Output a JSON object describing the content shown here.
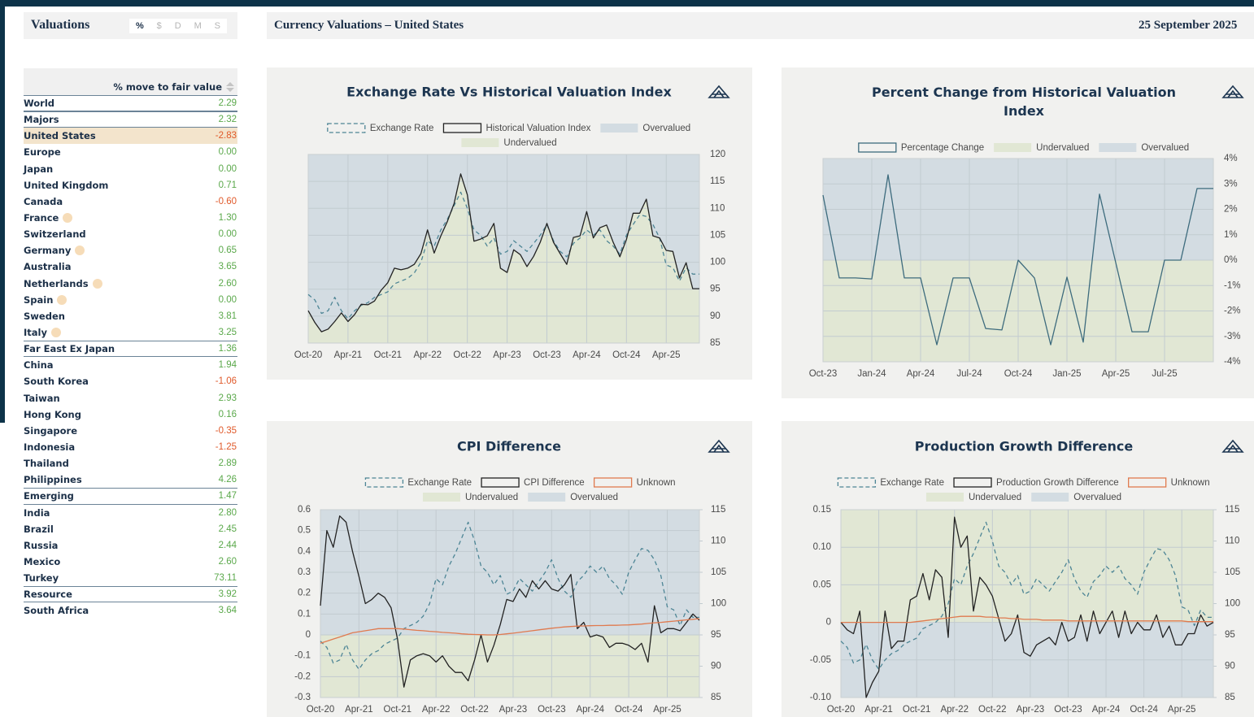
{
  "sidebar": {
    "title": "Valuations",
    "toggles": [
      "%",
      "$",
      "D",
      "M",
      "S"
    ],
    "column": "% move to fair value",
    "rows": [
      [
        "World",
        "2.29"
      ],
      [
        "Majors",
        "2.32"
      ],
      [
        "United States",
        "-2.83"
      ],
      [
        "Europe",
        "0.00"
      ],
      [
        "Japan",
        "0.00"
      ],
      [
        "United Kingdom",
        "0.71"
      ],
      [
        "Canada",
        "-0.60"
      ],
      [
        "France",
        "1.30"
      ],
      [
        "Switzerland",
        "0.00"
      ],
      [
        "Germany",
        "0.65"
      ],
      [
        "Australia",
        "3.65"
      ],
      [
        "Netherlands",
        "2.60"
      ],
      [
        "Spain",
        "0.00"
      ],
      [
        "Sweden",
        "3.81"
      ],
      [
        "Italy",
        "3.25"
      ],
      [
        "Far East Ex Japan",
        "1.36"
      ],
      [
        "China",
        "1.94"
      ],
      [
        "South Korea",
        "-1.06"
      ],
      [
        "Taiwan",
        "2.93"
      ],
      [
        "Hong Kong",
        "0.16"
      ],
      [
        "Singapore",
        "-0.35"
      ],
      [
        "Indonesia",
        "-1.25"
      ],
      [
        "Thailand",
        "2.89"
      ],
      [
        "Philippines",
        "4.26"
      ],
      [
        "Emerging",
        "1.47"
      ],
      [
        "India",
        "2.80"
      ],
      [
        "Brazil",
        "2.45"
      ],
      [
        "Russia",
        "2.44"
      ],
      [
        "Mexico",
        "2.60"
      ],
      [
        "Turkey",
        "73.11"
      ],
      [
        "Resource",
        "3.92"
      ],
      [
        "South Africa",
        "3.64"
      ]
    ]
  },
  "header": {
    "title": "Currency Valuations – United States",
    "date": "25 September 2025"
  },
  "chart_data": [
    {
      "type": "line",
      "title": "Exchange Rate Vs Historical Valuation Index",
      "categories": [
        "Oct-20",
        null,
        null,
        null,
        null,
        null,
        "Apr-21",
        null,
        null,
        null,
        null,
        null,
        "Oct-21",
        null,
        null,
        null,
        null,
        null,
        "Apr-22",
        null,
        null,
        null,
        null,
        null,
        "Oct-22",
        null,
        null,
        null,
        null,
        null,
        "Apr-23",
        null,
        null,
        null,
        null,
        null,
        "Oct-23",
        null,
        null,
        null,
        null,
        null,
        "Apr-24",
        null,
        null,
        null,
        null,
        null,
        "Oct-24",
        null,
        null,
        null,
        null,
        null,
        "Apr-25",
        null,
        null,
        null,
        null,
        null
      ],
      "series": [
        {
          "name": "Exchange Rate",
          "color": "#4d8595",
          "dash": true,
          "values": [
            94,
            93,
            90.5,
            91,
            93.5,
            91,
            89.5,
            91,
            92,
            92.5,
            93.5,
            94,
            94.5,
            96,
            96.5,
            97,
            98,
            100,
            104,
            103,
            106,
            108,
            110.5,
            113,
            110,
            106,
            105,
            103,
            104.5,
            101.5,
            102,
            104,
            103,
            102,
            103.5,
            105,
            107,
            104,
            102,
            101,
            103.5,
            104.5,
            106,
            105,
            106,
            104,
            103,
            101.5,
            105,
            107,
            108.8,
            108.5,
            107,
            104.5,
            99.5,
            99,
            96.5,
            99,
            97.8,
            97.8
          ]
        },
        {
          "name": "Historical Valuation Index",
          "color": "#222222",
          "values": [
            91,
            88.8,
            87.1,
            87.6,
            89,
            90.6,
            89,
            90.3,
            92.2,
            92.1,
            92.8,
            94.8,
            96.2,
            98.9,
            98.6,
            98.9,
            99.6,
            101.6,
            106,
            101.7,
            104.9,
            107.6,
            110.9,
            116.4,
            112.5,
            103.9,
            104.3,
            104.9,
            107.2,
            98.9,
            98.1,
            102.3,
            101.4,
            99.2,
            101.1,
            103.7,
            107.2,
            103.7,
            101.6,
            99.6,
            104.6,
            104.9,
            109.4,
            104.5,
            106.4,
            106.9,
            103.7,
            101,
            104.2,
            109.1,
            109.1,
            111.7,
            104.9,
            104.5,
            102.2,
            102,
            97.1,
            99.9,
            95.1,
            95.1
          ]
        }
      ],
      "areas": [
        {
          "name": "Overvalued",
          "color": "#d3dce2"
        },
        {
          "name": "Undervalued",
          "color": "#e1e7d4"
        }
      ],
      "ylim": [
        85,
        120
      ],
      "yticks": [
        85,
        90,
        95,
        100,
        105,
        110,
        115,
        120
      ],
      "grid": true
    },
    {
      "type": "line",
      "title": "Percent Change from Historical Valuation Index",
      "categories": [
        "Oct-23",
        null,
        null,
        "Jan-24",
        null,
        null,
        "Apr-24",
        null,
        null,
        "Jul-24",
        null,
        null,
        "Oct-24",
        null,
        null,
        "Jan-25",
        null,
        null,
        "Apr-25",
        null,
        null,
        "Jul-25",
        null,
        null,
        null
      ],
      "series": [
        {
          "name": "Percentage Change",
          "color": "#3d6b7d",
          "values": [
            2.56,
            -0.7,
            -0.7,
            -0.74,
            3.36,
            -0.7,
            -0.7,
            -3.33,
            -0.7,
            -0.7,
            -2.69,
            -2.75,
            0,
            -0.7,
            -3.33,
            -0.67,
            -3.23,
            2.6,
            -0.1,
            -2.82,
            -2.82,
            0,
            0,
            2.82,
            2.82
          ]
        }
      ],
      "areas": [
        {
          "name": "Undervalued",
          "color": "#e1e7d4"
        },
        {
          "name": "Overvalued",
          "color": "#d3dce2"
        }
      ],
      "ylim": [
        -4,
        4
      ],
      "yticks": [
        {
          "value": -4,
          "label": "-4%"
        },
        {
          "value": -3,
          "label": "-3%"
        },
        {
          "value": -2,
          "label": "-2%"
        },
        {
          "value": -1,
          "label": "-1%"
        },
        {
          "value": 0,
          "label": "0%"
        },
        {
          "value": 1,
          "label": "1%"
        },
        {
          "value": 2,
          "label": "2%"
        },
        {
          "value": 3,
          "label": "3%"
        },
        {
          "value": 4,
          "label": "4%"
        }
      ],
      "grid": true
    },
    {
      "type": "line",
      "title": "CPI Difference",
      "categories": [
        "Oct-20",
        null,
        null,
        null,
        null,
        null,
        "Apr-21",
        null,
        null,
        null,
        null,
        null,
        "Oct-21",
        null,
        null,
        null,
        null,
        null,
        "Apr-22",
        null,
        null,
        null,
        null,
        null,
        "Oct-22",
        null,
        null,
        null,
        null,
        null,
        "Apr-23",
        null,
        null,
        null,
        null,
        null,
        "Oct-23",
        null,
        null,
        null,
        null,
        null,
        "Apr-24",
        null,
        null,
        null,
        null,
        null,
        "Oct-24",
        null,
        null,
        null,
        null,
        null,
        "Apr-25",
        null,
        null,
        null,
        null,
        null
      ],
      "series": [
        {
          "name": "Exchange Rate",
          "color": "#4d8595",
          "dash": true,
          "axis": "y2",
          "values": [
            94,
            93,
            90.5,
            91,
            93.5,
            91,
            89.5,
            91,
            92,
            92.5,
            93.5,
            94,
            94.5,
            96,
            96.5,
            97,
            98,
            100,
            104,
            103,
            106,
            108,
            110.5,
            113,
            110,
            106,
            105,
            103,
            104.5,
            101.5,
            102,
            104,
            103,
            102,
            103.5,
            105,
            107,
            104,
            102,
            101,
            103.5,
            104.5,
            106,
            105,
            106,
            104,
            103,
            101.5,
            105,
            107,
            108.8,
            108.5,
            107,
            104.5,
            99.5,
            99,
            96.5,
            99,
            97.8,
            97.8
          ]
        },
        {
          "name": "CPI Difference",
          "color": "#222222",
          "values": [
            0.14,
            0.5,
            0.42,
            0.57,
            0.54,
            0.4,
            0.28,
            0.15,
            0.17,
            0.2,
            0.18,
            0.13,
            -0.02,
            -0.25,
            -0.12,
            -0.1,
            -0.09,
            -0.1,
            -0.13,
            -0.1,
            -0.15,
            -0.18,
            -0.18,
            -0.22,
            -0.12,
            0,
            -0.13,
            -0.05,
            0.05,
            0.17,
            0.16,
            0.22,
            0.18,
            0.26,
            0.22,
            0.26,
            0.22,
            0.21,
            0.24,
            0.29,
            0.03,
            0.06,
            -0.01,
            0,
            -0.01,
            -0.06,
            -0.04,
            -0.04,
            -0.05,
            -0.07,
            -0.04,
            -0.13,
            0.14,
            0.01,
            0.03,
            0.03,
            0.02,
            0.06,
            0.1,
            0.07
          ]
        },
        {
          "name": "Unknown",
          "color": "#e07a4f",
          "values": [
            -0.04,
            -0.03,
            -0.02,
            -0.01,
            0,
            0.01,
            0.015,
            0.02,
            0.025,
            0.03,
            0.03,
            0.03,
            0.03,
            0.028,
            0.025,
            0.022,
            0.02,
            0.017,
            0.015,
            0.012,
            0.01,
            0.008,
            0.005,
            0.003,
            0.002,
            0.001,
            0,
            0,
            0.002,
            0.005,
            0.008,
            0.012,
            0.016,
            0.02,
            0.024,
            0.028,
            0.032,
            0.035,
            0.038,
            0.04,
            0.042,
            0.043,
            0.044,
            0.045,
            0.045,
            0.046,
            0.046,
            0.047,
            0.048,
            0.05,
            0.052,
            0.055,
            0.058,
            0.06,
            0.063,
            0.066,
            0.069,
            0.072,
            0.075,
            0.078
          ]
        }
      ],
      "areas": [
        {
          "name": "Undervalued",
          "color": "#e1e7d4"
        },
        {
          "name": "Overvalued",
          "color": "#d3dce2"
        }
      ],
      "ylim": [
        -0.3,
        0.6
      ],
      "yticks": [
        -0.3,
        -0.2,
        -0.1,
        0,
        0.1,
        0.2,
        0.3,
        0.4,
        0.5,
        0.6
      ],
      "y2lim": [
        85,
        115
      ],
      "y2ticks": [
        85,
        90,
        95,
        100,
        105,
        110,
        115
      ],
      "grid": true
    },
    {
      "type": "line",
      "title": "Production Growth Difference",
      "categories": [
        "Oct-20",
        null,
        null,
        null,
        null,
        null,
        "Apr-21",
        null,
        null,
        null,
        null,
        null,
        "Oct-21",
        null,
        null,
        null,
        null,
        null,
        "Apr-22",
        null,
        null,
        null,
        null,
        null,
        "Oct-22",
        null,
        null,
        null,
        null,
        null,
        "Apr-23",
        null,
        null,
        null,
        null,
        null,
        "Oct-23",
        null,
        null,
        null,
        null,
        null,
        "Apr-24",
        null,
        null,
        null,
        null,
        null,
        "Oct-24",
        null,
        null,
        null,
        null,
        null,
        "Apr-25",
        null,
        null,
        null,
        null,
        null
      ],
      "series": [
        {
          "name": "Exchange Rate",
          "color": "#4d8595",
          "dash": true,
          "axis": "y2",
          "values": [
            94,
            93,
            90.5,
            91,
            93.5,
            91,
            89.5,
            91,
            92,
            92.5,
            93.5,
            94,
            94.5,
            96,
            96.5,
            97,
            98,
            100,
            104,
            103,
            106,
            108,
            110.5,
            113,
            110,
            106,
            105,
            103,
            104.5,
            101.5,
            102,
            104,
            103,
            102,
            103.5,
            105,
            107,
            104,
            102,
            101,
            103.5,
            104.5,
            106,
            105,
            106,
            104,
            103,
            101.5,
            105,
            107,
            108.8,
            108.5,
            107,
            104.5,
            99.5,
            99,
            96.5,
            99,
            97.8,
            97.8
          ]
        },
        {
          "name": "Production Growth Difference",
          "color": "#222222",
          "values": [
            0,
            -0.01,
            -0.015,
            0.015,
            -0.1,
            -0.08,
            -0.065,
            0.015,
            -0.035,
            -0.025,
            -0.025,
            0.03,
            0.035,
            0.065,
            0.03,
            0.07,
            0.06,
            -0.02,
            0.14,
            0.1,
            0.115,
            0.015,
            0.06,
            0.05,
            0.035,
            0.005,
            -0.025,
            -0.015,
            0.01,
            -0.04,
            -0.045,
            -0.03,
            -0.025,
            -0.02,
            -0.03,
            0,
            -0.025,
            -0.02,
            0.01,
            -0.025,
            0.015,
            -0.015,
            0,
            0.015,
            -0.02,
            0.015,
            -0.015,
            0,
            -0.01,
            -0.01,
            0.01,
            -0.02,
            -0.005,
            -0.03,
            -0.03,
            -0.015,
            -0.015,
            0.01,
            -0.005,
            0
          ]
        },
        {
          "name": "Unknown",
          "color": "#e07a4f",
          "values": [
            0,
            0,
            0,
            0,
            0,
            0,
            0,
            0,
            0,
            0,
            0,
            0,
            0.001,
            0.002,
            0.003,
            0.004,
            0.005,
            0.006,
            0.007,
            0.008,
            0.008,
            0.008,
            0.008,
            0.007,
            0.007,
            0.006,
            0.006,
            0.005,
            0.005,
            0.004,
            0.004,
            0.004,
            0.003,
            0.003,
            0.003,
            0.003,
            0.002,
            0.002,
            0.002,
            0.002,
            0.002,
            0.002,
            0.002,
            0.002,
            0.002,
            0.002,
            0.002,
            0.002,
            0.002,
            0.002,
            0.002,
            0.002,
            0.002,
            0.002,
            0.002,
            0.001,
            0.001,
            0.001,
            0.001,
            0.001
          ]
        }
      ],
      "areas": [
        {
          "name": "Undervalued",
          "color": "#e1e7d4"
        },
        {
          "name": "Overvalued",
          "color": "#d3dce2"
        }
      ],
      "ylim": [
        -0.1,
        0.15
      ],
      "yticks": [
        {
          "value": -0.1,
          "label": "-0.10"
        },
        -0.05,
        0,
        0.05,
        {
          "value": 0.1,
          "label": "0.10"
        },
        0.15
      ],
      "y2lim": [
        85,
        115
      ],
      "y2ticks": [
        85,
        90,
        95,
        100,
        105,
        110,
        115
      ],
      "grid": true
    }
  ]
}
